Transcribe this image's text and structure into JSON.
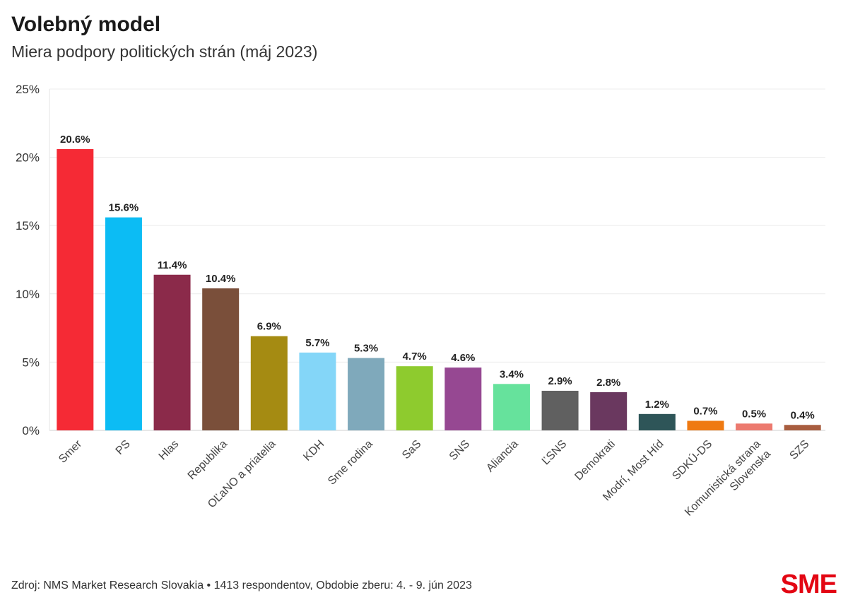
{
  "chart_data": {
    "type": "bar",
    "title": "Volebný model",
    "subtitle": "Miera podpory politických strán (máj 2023)",
    "xlabel": "",
    "ylabel": "",
    "ylim": [
      0,
      25
    ],
    "yticks": [
      0,
      5,
      10,
      15,
      20,
      25
    ],
    "ytick_labels": [
      "0%",
      "5%",
      "10%",
      "15%",
      "20%",
      "25%"
    ],
    "grid": true,
    "categories": [
      [
        "Smer"
      ],
      [
        "PS"
      ],
      [
        "Hlas"
      ],
      [
        "Republika"
      ],
      [
        "OĽaNO a priatelia"
      ],
      [
        "KDH"
      ],
      [
        "Sme rodina"
      ],
      [
        "SaS"
      ],
      [
        "SNS"
      ],
      [
        "Aliancia"
      ],
      [
        "ĽSNS"
      ],
      [
        "Demokrati"
      ],
      [
        "Modrí, Most Híd"
      ],
      [
        "SDKÚ-DS"
      ],
      [
        "Komunistická strana",
        "Slovenska"
      ],
      [
        "SZS"
      ]
    ],
    "values": [
      20.6,
      15.6,
      11.4,
      10.4,
      6.9,
      5.7,
      5.3,
      4.7,
      4.6,
      3.4,
      2.9,
      2.8,
      1.2,
      0.7,
      0.5,
      0.4
    ],
    "value_labels": [
      "20.6%",
      "15.6%",
      "11.4%",
      "10.4%",
      "6.9%",
      "5.7%",
      "5.3%",
      "4.7%",
      "4.6%",
      "3.4%",
      "2.9%",
      "2.8%",
      "1.2%",
      "0.7%",
      "0.5%",
      "0.4%"
    ],
    "colors": [
      "#f52a35",
      "#0cbcf4",
      "#8b2a4a",
      "#7a4f3a",
      "#a58b12",
      "#84d6f8",
      "#7fa9bb",
      "#8ecb2e",
      "#964892",
      "#66e29c",
      "#606060",
      "#6a385f",
      "#2e5558",
      "#ef7a12",
      "#ec7a6f",
      "#a85d3f"
    ]
  },
  "footer": {
    "source": "Zdroj: NMS Market Research Slovakia • 1413 respondentov, Obdobie zberu: 4. - 9. jún 2023",
    "logo": "SME"
  }
}
